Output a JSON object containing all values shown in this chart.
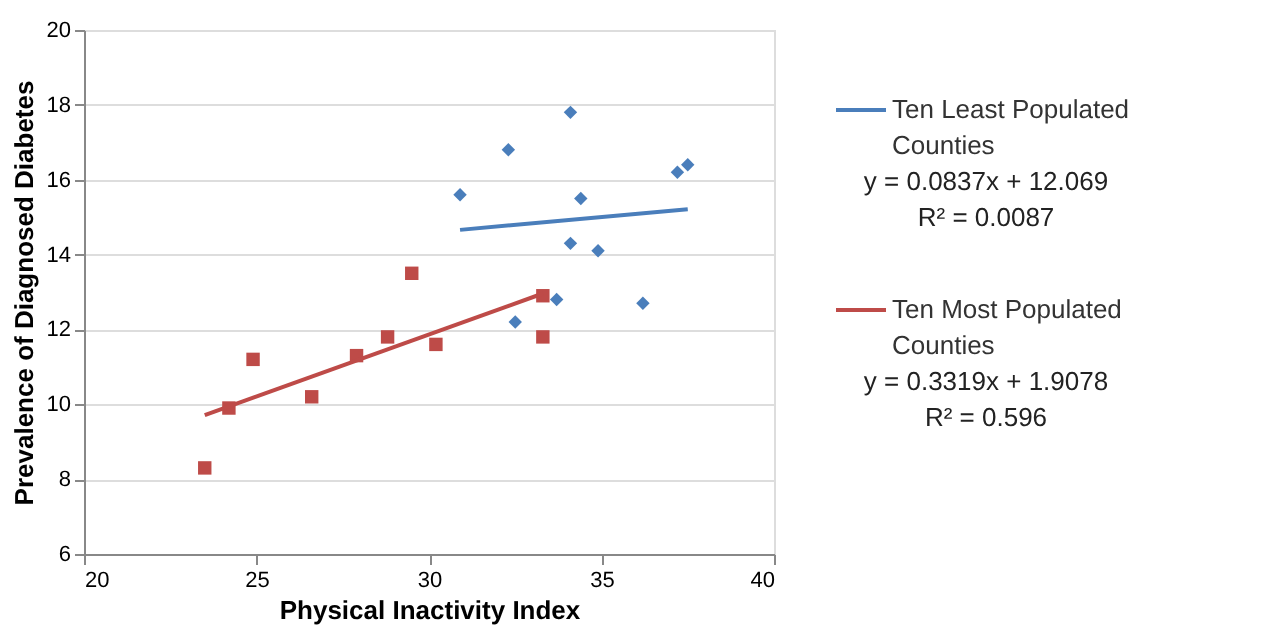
{
  "chart_data": {
    "type": "scatter",
    "xlabel": "Physical Inactivity Index",
    "ylabel": "Prevalence of Diagnosed Diabetes",
    "xlim": [
      20,
      40
    ],
    "xticks": [
      20,
      25,
      30,
      35,
      40
    ],
    "ylim": [
      6,
      20
    ],
    "yticks": [
      6,
      8,
      10,
      12,
      14,
      16,
      18,
      20
    ],
    "grid": "y",
    "legend": "right",
    "series": [
      {
        "color": "#4a7ebb",
        "marker": "diamond",
        "x": [
          30.9,
          32.3,
          34.1,
          34.4,
          34.1,
          34.9,
          33.7,
          32.5,
          36.2,
          37.2,
          37.5
        ],
        "values": [
          15.6,
          16.8,
          17.8,
          15.5,
          14.3,
          14.1,
          12.8,
          12.2,
          12.7,
          16.2,
          16.4
        ]
      },
      {
        "color": "#be4b48",
        "marker": "square",
        "x": [
          23.5,
          24.2,
          24.9,
          26.6,
          27.9,
          28.8,
          29.5,
          30.2,
          33.3,
          33.3
        ],
        "values": [
          8.3,
          9.9,
          11.2,
          10.2,
          11.3,
          11.8,
          13.5,
          11.6,
          12.9,
          11.8
        ]
      },
      {
        "type": "line",
        "name": "Ten Least Populated Counties",
        "color": "#4a7ebb",
        "marker": "none",
        "x": [
          30.9,
          37.5
        ],
        "values": [
          14.66,
          15.21
        ]
      },
      {
        "type": "line",
        "name": "Ten Most Populated Counties",
        "color": "#be4b48",
        "marker": "none",
        "x": [
          23.5,
          33.3
        ],
        "values": [
          9.71,
          12.96
        ]
      }
    ],
    "annotations": [
      "y = 0.0837x + 12.069",
      "R² = 0.0087",
      "y = 0.3319x + 1.9078",
      "R² = 0.596"
    ]
  }
}
